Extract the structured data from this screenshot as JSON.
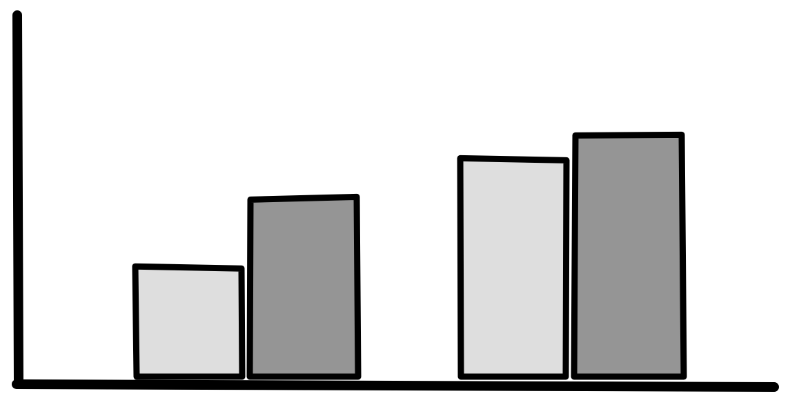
{
  "chart_data": {
    "type": "bar",
    "title": "",
    "xlabel": "",
    "ylabel": "",
    "categories": [
      "",
      ""
    ],
    "series": [
      {
        "values": [
          36,
          72
        ],
        "color": "#dedede"
      },
      {
        "values": [
          59,
          80
        ],
        "color": "#959595"
      }
    ],
    "ylim": [
      0,
      120
    ],
    "grid": false,
    "legend": "none",
    "style": "hand-drawn"
  }
}
